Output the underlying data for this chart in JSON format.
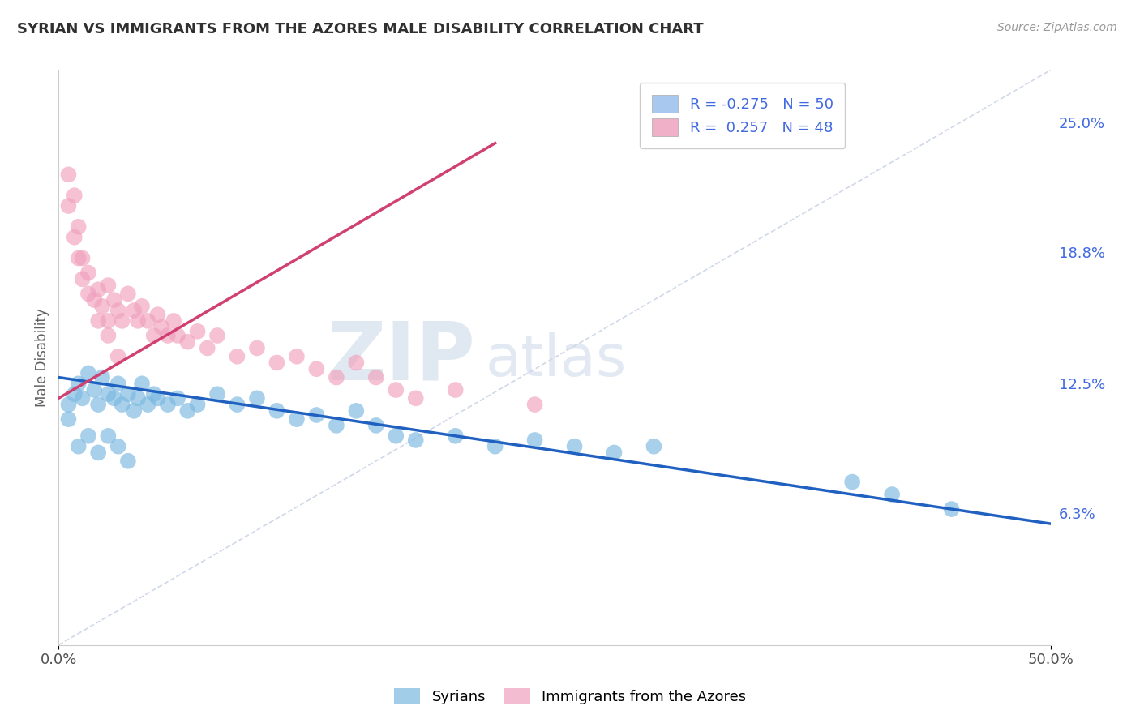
{
  "title": "SYRIAN VS IMMIGRANTS FROM THE AZORES MALE DISABILITY CORRELATION CHART",
  "source": "Source: ZipAtlas.com",
  "ylabel": "Male Disability",
  "xlim": [
    0.0,
    0.5
  ],
  "ylim": [
    0.0,
    0.275
  ],
  "y_tick_right": [
    0.063,
    0.125,
    0.188,
    0.25
  ],
  "y_tick_right_labels": [
    "6.3%",
    "12.5%",
    "18.8%",
    "25.0%"
  ],
  "watermark_zip": "ZIP",
  "watermark_atlas": "atlas",
  "legend_entry1": "R = -0.275   N = 50",
  "legend_entry2": "R =  0.257   N = 48",
  "legend_color1": "#a8c8f0",
  "legend_color2": "#f0b0c8",
  "syrians_color": "#7ab8e0",
  "azores_color": "#f0a0bc",
  "syrians_line_color": "#2060c0",
  "azores_line_color": "#d04070",
  "background_color": "#ffffff",
  "grid_color": "#c8d4e8",
  "title_color": "#303030",
  "diag_color": "#d0d8e8",
  "right_axis_color": "#4169e1",
  "syrians_scatter_x": [
    0.005,
    0.008,
    0.01,
    0.012,
    0.015,
    0.018,
    0.02,
    0.022,
    0.025,
    0.028,
    0.03,
    0.032,
    0.035,
    0.038,
    0.04,
    0.042,
    0.045,
    0.048,
    0.05,
    0.055,
    0.06,
    0.065,
    0.07,
    0.08,
    0.09,
    0.1,
    0.11,
    0.12,
    0.13,
    0.14,
    0.15,
    0.16,
    0.17,
    0.18,
    0.2,
    0.22,
    0.24,
    0.26,
    0.28,
    0.3,
    0.005,
    0.01,
    0.015,
    0.02,
    0.025,
    0.03,
    0.035,
    0.4,
    0.42,
    0.45
  ],
  "syrians_scatter_y": [
    0.115,
    0.12,
    0.125,
    0.118,
    0.13,
    0.122,
    0.115,
    0.128,
    0.12,
    0.118,
    0.125,
    0.115,
    0.12,
    0.112,
    0.118,
    0.125,
    0.115,
    0.12,
    0.118,
    0.115,
    0.118,
    0.112,
    0.115,
    0.12,
    0.115,
    0.118,
    0.112,
    0.108,
    0.11,
    0.105,
    0.112,
    0.105,
    0.1,
    0.098,
    0.1,
    0.095,
    0.098,
    0.095,
    0.092,
    0.095,
    0.108,
    0.095,
    0.1,
    0.092,
    0.1,
    0.095,
    0.088,
    0.078,
    0.072,
    0.065
  ],
  "azores_scatter_x": [
    0.005,
    0.008,
    0.01,
    0.012,
    0.015,
    0.018,
    0.02,
    0.022,
    0.025,
    0.025,
    0.028,
    0.03,
    0.032,
    0.035,
    0.038,
    0.04,
    0.042,
    0.045,
    0.048,
    0.05,
    0.052,
    0.055,
    0.058,
    0.06,
    0.065,
    0.07,
    0.075,
    0.08,
    0.09,
    0.1,
    0.11,
    0.12,
    0.13,
    0.14,
    0.15,
    0.16,
    0.17,
    0.18,
    0.2,
    0.24,
    0.005,
    0.008,
    0.01,
    0.012,
    0.015,
    0.02,
    0.025,
    0.03
  ],
  "azores_scatter_y": [
    0.21,
    0.195,
    0.185,
    0.175,
    0.168,
    0.165,
    0.17,
    0.162,
    0.155,
    0.172,
    0.165,
    0.16,
    0.155,
    0.168,
    0.16,
    0.155,
    0.162,
    0.155,
    0.148,
    0.158,
    0.152,
    0.148,
    0.155,
    0.148,
    0.145,
    0.15,
    0.142,
    0.148,
    0.138,
    0.142,
    0.135,
    0.138,
    0.132,
    0.128,
    0.135,
    0.128,
    0.122,
    0.118,
    0.122,
    0.115,
    0.225,
    0.215,
    0.2,
    0.185,
    0.178,
    0.155,
    0.148,
    0.138
  ],
  "syrians_trend_x0": 0.0,
  "syrians_trend_y0": 0.128,
  "syrians_trend_x1": 0.5,
  "syrians_trend_y1": 0.058,
  "azores_trend_x0": 0.0,
  "azores_trend_y0": 0.118,
  "azores_trend_x1": 0.22,
  "azores_trend_y1": 0.24
}
